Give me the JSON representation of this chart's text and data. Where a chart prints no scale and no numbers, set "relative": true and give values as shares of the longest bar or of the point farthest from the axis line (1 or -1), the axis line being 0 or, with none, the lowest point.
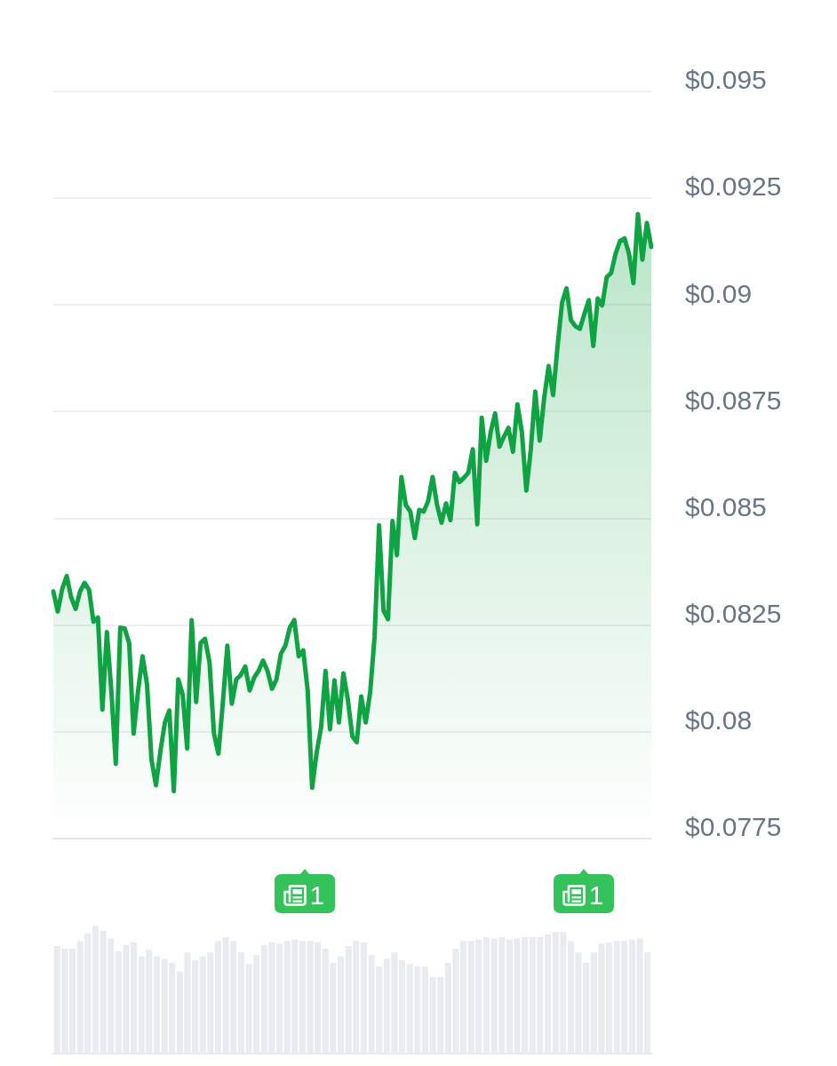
{
  "chart_data": [
    {
      "type": "area",
      "categories": [
        null,
        null,
        null,
        null,
        null,
        null,
        null,
        null,
        null,
        null,
        null,
        null,
        null,
        null,
        null,
        null,
        null,
        null,
        null,
        null,
        null,
        null,
        null,
        null,
        null,
        null,
        null,
        null,
        null,
        null,
        null,
        null,
        null,
        null,
        null,
        null,
        null,
        null,
        null,
        null,
        null,
        null,
        null,
        null,
        null,
        null,
        null,
        null,
        null,
        null,
        null,
        null,
        null,
        null,
        null,
        null,
        null,
        null,
        null,
        null,
        null,
        null,
        null,
        null,
        null,
        null,
        null,
        null,
        null,
        null,
        null,
        null,
        null,
        null,
        null,
        null,
        null,
        null,
        null,
        null,
        null,
        null,
        null,
        null,
        null,
        null,
        null,
        null,
        null,
        null,
        null,
        null,
        null,
        null,
        null,
        null,
        null,
        null,
        null,
        null,
        null,
        null,
        null,
        null,
        null,
        null,
        null,
        null,
        null,
        null,
        null,
        null,
        null,
        null,
        null,
        null,
        null,
        null,
        null,
        null,
        null,
        null,
        null,
        null,
        null,
        null,
        null,
        null,
        null,
        null,
        null,
        null,
        null,
        null,
        null
      ],
      "values": [
        0.08329,
        0.08282,
        0.08335,
        0.08365,
        0.08315,
        0.08288,
        0.08329,
        0.08349,
        0.08333,
        0.08258,
        0.08268,
        0.08052,
        0.08234,
        0.08097,
        0.07925,
        0.08244,
        0.08242,
        0.08208,
        0.07996,
        0.08097,
        0.08177,
        0.08111,
        0.07935,
        0.07875,
        0.07955,
        0.08022,
        0.0805,
        0.07861,
        0.08123,
        0.08087,
        0.07961,
        0.08262,
        0.0807,
        0.08208,
        0.08218,
        0.08163,
        0.07996,
        0.07949,
        0.0807,
        0.08202,
        0.08066,
        0.08123,
        0.08133,
        0.08153,
        0.08097,
        0.08127,
        0.08143,
        0.08167,
        0.08143,
        0.08101,
        0.08123,
        0.08183,
        0.08202,
        0.08244,
        0.08262,
        0.08177,
        0.08191,
        0.08097,
        0.07869,
        0.07951,
        0.0801,
        0.08143,
        0.08006,
        0.08121,
        0.08022,
        0.08137,
        0.08076,
        0.0799,
        0.07976,
        0.08083,
        0.08022,
        0.08093,
        0.08224,
        0.08484,
        0.08284,
        0.08264,
        0.08494,
        0.08414,
        0.08597,
        0.08531,
        0.08516,
        0.08454,
        0.0852,
        0.08516,
        0.08541,
        0.08597,
        0.08531,
        0.0849,
        0.08535,
        0.08496,
        0.08607,
        0.08585,
        0.08595,
        0.08607,
        0.08662,
        0.08486,
        0.08736,
        0.08635,
        0.08702,
        0.08746,
        0.08668,
        0.08692,
        0.08712,
        0.08656,
        0.08767,
        0.08702,
        0.08565,
        0.08662,
        0.08797,
        0.08682,
        0.08783,
        0.08857,
        0.08789,
        0.08904,
        0.09005,
        0.09039,
        0.08964,
        0.0895,
        0.08944,
        0.08979,
        0.09011,
        0.08904,
        0.09015,
        0.08999,
        0.09065,
        0.09075,
        0.0912,
        0.0915,
        0.09156,
        0.0912,
        0.09051,
        0.09213,
        0.09106,
        0.09192,
        0.09136
      ],
      "color": "#10a343",
      "ylim": [
        0.0775,
        0.095
      ],
      "yticks": [
        {
          "value": 0.0775,
          "label": "$0.0775"
        },
        {
          "value": 0.08,
          "label": "$0.08"
        },
        {
          "value": 0.0825,
          "label": "$0.0825"
        },
        {
          "value": 0.085,
          "label": "$0.085"
        },
        {
          "value": 0.0875,
          "label": "$0.0875"
        },
        {
          "value": 0.09,
          "label": "$0.09"
        },
        {
          "value": 0.0925,
          "label": "$0.0925"
        },
        {
          "value": 0.095,
          "label": "$0.095"
        }
      ],
      "grid": "y",
      "tick_labels": "y",
      "annotations": [
        "1",
        "1"
      ]
    },
    {
      "type": "bar",
      "relative": true,
      "categories": [
        null,
        null,
        null,
        null,
        null,
        null,
        null,
        null,
        null,
        null,
        null,
        null,
        null,
        null,
        null,
        null,
        null,
        null,
        null,
        null,
        null,
        null,
        null,
        null,
        null,
        null,
        null,
        null,
        null,
        null,
        null,
        null,
        null,
        null,
        null,
        null,
        null,
        null,
        null,
        null,
        null,
        null,
        null,
        null,
        null,
        null,
        null,
        null,
        null,
        null,
        null,
        null,
        null,
        null,
        null,
        null,
        null,
        null,
        null,
        null,
        null,
        null,
        null,
        null,
        null,
        null,
        null,
        null,
        null,
        null,
        null,
        null,
        null,
        null,
        null,
        null,
        null,
        null
      ],
      "values": [
        0.84,
        0.82,
        0.82,
        0.88,
        0.94,
        1,
        0.96,
        0.9,
        0.8,
        0.85,
        0.87,
        0.76,
        0.81,
        0.76,
        0.74,
        0.71,
        0.64,
        0.79,
        0.73,
        0.76,
        0.79,
        0.88,
        0.91,
        0.88,
        0.79,
        0.7,
        0.77,
        0.85,
        0.87,
        0.86,
        0.88,
        0.89,
        0.88,
        0.88,
        0.87,
        0.82,
        0.71,
        0.76,
        0.84,
        0.88,
        0.87,
        0.77,
        0.68,
        0.74,
        0.79,
        0.73,
        0.7,
        0.68,
        0.68,
        0.6,
        0.6,
        0.71,
        0.82,
        0.88,
        0.88,
        0.89,
        0.91,
        0.9,
        0.91,
        0.89,
        0.9,
        0.91,
        0.91,
        0.91,
        0.93,
        0.95,
        0.95,
        0.88,
        0.79,
        0.71,
        0.79,
        0.86,
        0.87,
        0.88,
        0.88,
        0.89,
        0.9,
        0.79
      ],
      "color": "#e8ebef",
      "tick_labels": false
    }
  ]
}
